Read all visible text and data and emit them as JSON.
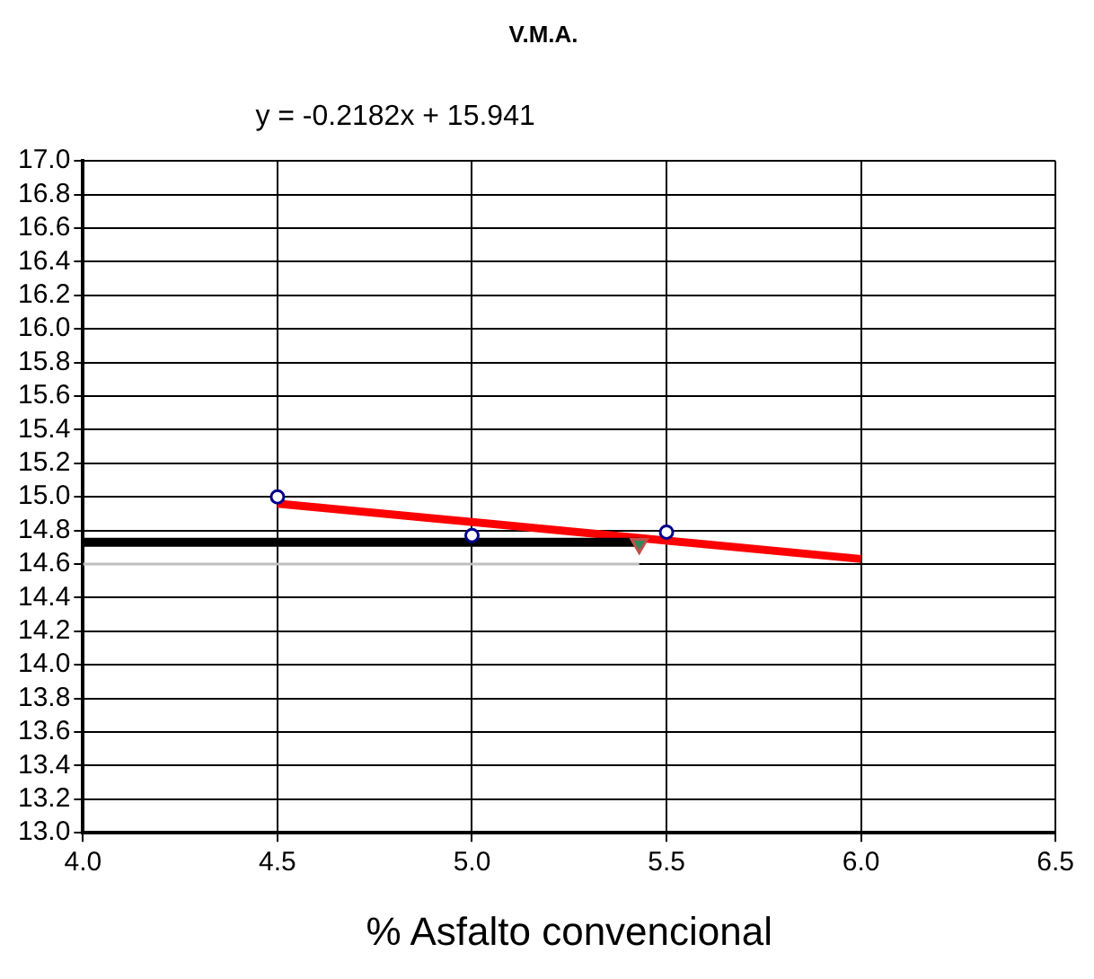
{
  "chart_data": {
    "type": "scatter",
    "title": "V.M.A.",
    "xlabel": "% Asfalto convencional",
    "annotations": [
      "y = -0.2182x + 15.941"
    ],
    "xlim": [
      4.0,
      6.5
    ],
    "xticks": [
      {
        "value": 4.0,
        "label": "4.0"
      },
      {
        "value": 4.5,
        "label": "4.5"
      },
      {
        "value": 5.0,
        "label": "5.0"
      },
      {
        "value": 5.5,
        "label": "5.5"
      },
      {
        "value": 6.0,
        "label": "6.0"
      },
      {
        "value": 6.5,
        "label": "6.5"
      }
    ],
    "ylim": [
      13.0,
      17.0
    ],
    "yticks": [
      {
        "value": 13.0,
        "label": "13.0"
      },
      {
        "value": 13.2,
        "label": "13.2"
      },
      {
        "value": 13.4,
        "label": "13.4"
      },
      {
        "value": 13.6,
        "label": "13.6"
      },
      {
        "value": 13.8,
        "label": "13.8"
      },
      {
        "value": 14.0,
        "label": "14.0"
      },
      {
        "value": 14.2,
        "label": "14.2"
      },
      {
        "value": 14.4,
        "label": "14.4"
      },
      {
        "value": 14.6,
        "label": "14.6"
      },
      {
        "value": 14.8,
        "label": "14.8"
      },
      {
        "value": 15.0,
        "label": "15.0"
      },
      {
        "value": 15.2,
        "label": "15.2"
      },
      {
        "value": 15.4,
        "label": "15.4"
      },
      {
        "value": 15.6,
        "label": "15.6"
      },
      {
        "value": 15.8,
        "label": "15.8"
      },
      {
        "value": 16.0,
        "label": "16.0"
      },
      {
        "value": 16.2,
        "label": "16.2"
      },
      {
        "value": 16.4,
        "label": "16.4"
      },
      {
        "value": 16.6,
        "label": "16.6"
      },
      {
        "value": 16.8,
        "label": "16.8"
      },
      {
        "value": 17.0,
        "label": "17.0"
      }
    ],
    "grid": true,
    "legend": false,
    "series": [
      {
        "type": "line",
        "marker": "none",
        "color": "#bfbfbf",
        "x": [
          4.0,
          5.43
        ],
        "values": [
          14.6,
          14.6
        ]
      },
      {
        "type": "line",
        "marker": "none",
        "color": "#000000",
        "x": [
          4.0,
          5.43
        ],
        "values": [
          14.73,
          14.73
        ]
      },
      {
        "type": "line",
        "marker": "none",
        "color": "#ff0000",
        "x": [
          4.5,
          6.0
        ],
        "values": [
          14.96,
          14.63
        ]
      },
      {
        "marker": "circle",
        "color": "#00008b",
        "x": [
          4.5,
          5.0,
          5.5
        ],
        "values": [
          15.0,
          14.77,
          14.79
        ]
      },
      {
        "marker": "triangle",
        "color": "#2e8b57",
        "x": [
          5.43
        ],
        "values": [
          14.72
        ]
      }
    ]
  }
}
